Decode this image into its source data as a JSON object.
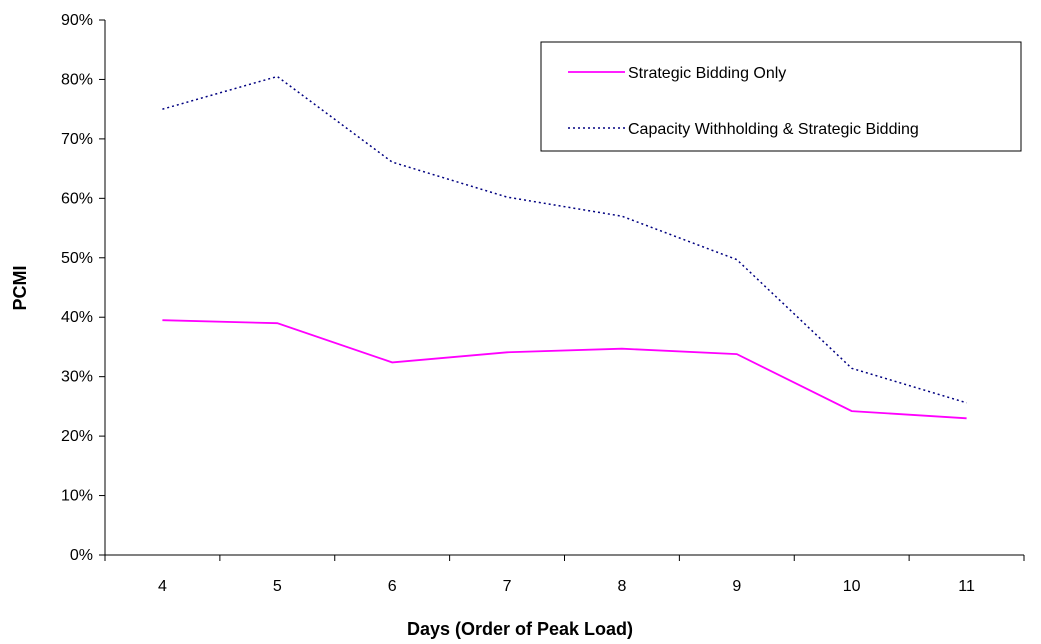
{
  "chart_data": {
    "type": "line",
    "title": "",
    "xlabel": "Days (Order of Peak Load)",
    "ylabel": "PCMI",
    "x": [
      "4",
      "5",
      "6",
      "7",
      "8",
      "9",
      "10",
      "11"
    ],
    "y_ticks": [
      "0%",
      "10%",
      "20%",
      "30%",
      "40%",
      "50%",
      "60%",
      "70%",
      "80%",
      "90%"
    ],
    "ylim": [
      0,
      90
    ],
    "y_unit": "%",
    "grid": false,
    "legend_position": "top-right",
    "series": [
      {
        "name": "Strategic Bidding Only",
        "values": [
          39.5,
          39.0,
          32.4,
          34.1,
          34.7,
          33.8,
          24.2,
          23.0
        ],
        "color": "#ff00ff",
        "style": "solid"
      },
      {
        "name": "Capacity Withholding & Strategic Bidding",
        "values": [
          75.0,
          80.5,
          66.1,
          60.2,
          57.0,
          49.7,
          31.4,
          25.6
        ],
        "color": "#000080",
        "style": "dotted"
      }
    ]
  }
}
